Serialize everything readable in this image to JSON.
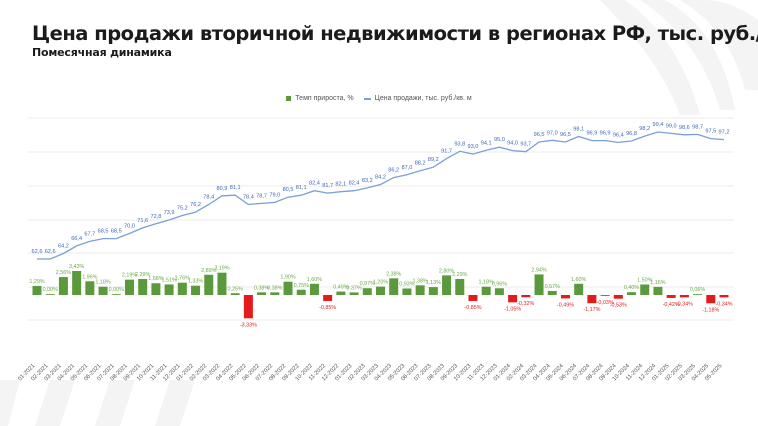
{
  "header": {
    "title": "Цена продажи вторичной недвижимости в регионах РФ, тыс. руб./кв. м",
    "subtitle": "Помесячная динамика"
  },
  "legend": {
    "bar_label": "Темп прироста, %",
    "line_label": "Цена продажи, тыс. руб./кв. м"
  },
  "colors": {
    "line": "#7b9fd8",
    "line_label": "#3f68b8",
    "bar_positive": "#5a9a3c",
    "bar_negative": "#e31b1b",
    "label_positive": "#6aaa4a",
    "label_negative": "#e02020",
    "grid": "#ebebeb"
  },
  "chart_data": {
    "type": "bar+line",
    "title": "Цена продажи вторичной недвижимости в регионах РФ, тыс. руб./кв. м",
    "subtitle": "Помесячная динамика",
    "xlabel": "",
    "ylabel": "",
    "legend_position": "top",
    "grid": true,
    "categories": [
      "01-2021",
      "02-2021",
      "03-2021",
      "04-2021",
      "05-2021",
      "06-2021",
      "07-2021",
      "08-2021",
      "09-2021",
      "10-2021",
      "11-2021",
      "12-2021",
      "01-2022",
      "02-2022",
      "03-2022",
      "04-2022",
      "05-2022",
      "06-2022",
      "07-2022",
      "08-2022",
      "09-2022",
      "10-2022",
      "11-2022",
      "12-2022",
      "01-2023",
      "02-2023",
      "03-2023",
      "04-2023",
      "05-2023",
      "06-2023",
      "07-2023",
      "08-2023",
      "09-2023",
      "10-2023",
      "11-2023",
      "12-2023",
      "01-2024",
      "02-2024",
      "03-2024",
      "04-2024",
      "05-2024",
      "06-2024",
      "07-2024",
      "08-2024",
      "09-2024",
      "10-2024",
      "11-2024",
      "12-2024",
      "01-2025",
      "02-2025",
      "03-2025",
      "04-2025",
      "05-2025"
    ],
    "series": [
      {
        "name": "Темп прироста, %",
        "type": "bar",
        "values": [
          1.29,
          0.0,
          2.56,
          3.43,
          1.96,
          1.18,
          0.0,
          2.19,
          2.29,
          1.68,
          1.51,
          1.76,
          1.33,
          2.89,
          3.19,
          0.25,
          -3.33,
          0.38,
          0.38,
          1.9,
          0.75,
          1.6,
          -0.85,
          0.49,
          0.37,
          0.97,
          1.2,
          2.38,
          0.93,
          1.38,
          1.13,
          2.8,
          2.29,
          -0.85,
          1.18,
          0.96,
          -1.05,
          -0.32,
          2.94,
          0.57,
          -0.49,
          1.6,
          -1.17,
          -0.03,
          -0.53,
          0.4,
          1.5,
          1.16,
          -0.42,
          -0.34,
          0.06,
          -1.18,
          -0.34
        ],
        "labels": [
          "1,29%",
          "0,00%",
          "2,56%",
          "3,43%",
          "1,96%",
          "1,18%",
          "0,00%",
          "2,19%",
          "2,29%",
          "1,68%",
          "1,51%",
          "1,76%",
          "1,33%",
          "2,89%",
          "3,19%",
          "0,25%",
          "-3,33%",
          "0,38%",
          "0,38%",
          "1,90%",
          "0,75%",
          "1,60%",
          "-0,85%",
          "0,49%",
          "0,37%",
          "0,97%",
          "1,20%",
          "2,38%",
          "0,93%",
          "1,38%",
          "1,13%",
          "2,80%",
          "2,29%",
          "-0,85%",
          "1,18%",
          "0,96%",
          "-1,05%",
          "-0,32%",
          "2,94%",
          "0,57%",
          "-0,49%",
          "1,60%",
          "-1,17%",
          "-0,03%",
          "-0,53%",
          "0,40%",
          "1,50%",
          "1,16%",
          "-0,42%",
          "-0,34%",
          "0,06%",
          "-1,18%",
          "-0,34%"
        ]
      },
      {
        "name": "Цена продажи, тыс. руб./кв. м",
        "type": "line",
        "values": [
          62.6,
          62.6,
          64.2,
          66.4,
          67.7,
          68.5,
          68.5,
          70.0,
          71.6,
          72.8,
          73.9,
          75.2,
          76.2,
          78.4,
          80.9,
          81.1,
          78.4,
          78.7,
          79.0,
          80.5,
          81.1,
          82.4,
          81.7,
          82.1,
          82.4,
          83.2,
          84.2,
          86.2,
          87.0,
          88.2,
          89.2,
          91.7,
          93.8,
          93.0,
          94.1,
          95.0,
          94.0,
          93.7,
          96.5,
          97.0,
          96.5,
          98.1,
          96.9,
          96.9,
          96.4,
          96.8,
          98.2,
          99.4,
          99.0,
          98.6,
          98.7,
          97.5,
          97.2
        ],
        "labels": [
          "62,6",
          "62,6",
          "64,2",
          "66,4",
          "67,7",
          "68,5",
          "68,5",
          "70,0",
          "71,6",
          "72,8",
          "73,9",
          "75,2",
          "76,2",
          "78,4",
          "80,9",
          "81,1",
          "78,4",
          "78,7",
          "79,0",
          "80,5",
          "81,1",
          "82,4",
          "81,7",
          "82,1",
          "82,4",
          "83,2",
          "84,2",
          "86,2",
          "87,0",
          "88,2",
          "89,2",
          "91,7",
          "93,8",
          "93,0",
          "94,1",
          "95,0",
          "94,0",
          "93,7",
          "96,5",
          "97,0",
          "96,5",
          "98,1",
          "96,9",
          "96,9",
          "96,4",
          "96,8",
          "98,2",
          "99,4",
          "99,0",
          "98,6",
          "98,7",
          "97,5",
          "97,2"
        ]
      }
    ]
  }
}
